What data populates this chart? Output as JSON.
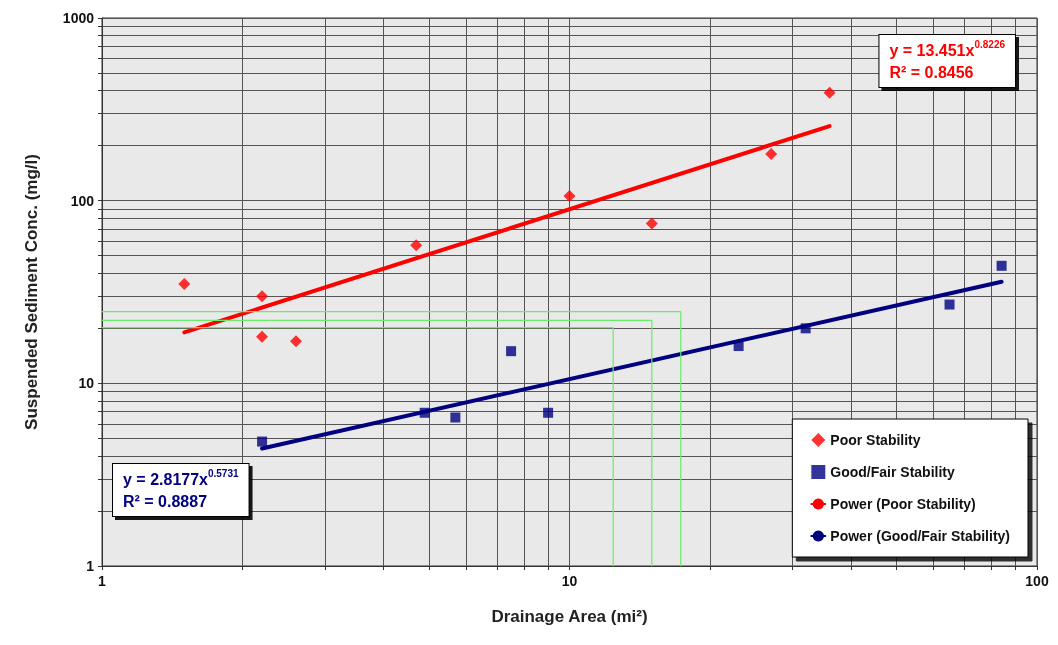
{
  "chart_data": {
    "type": "scatter",
    "xlabel": "Drainage Area (mi²)",
    "ylabel": "Suspended Sediment Conc. (mg/l)",
    "series": [
      {
        "name": "Poor Stability",
        "marker": "diamond",
        "color": "#ff0000",
        "x": [
          1.5,
          2.2,
          2.2,
          2.6,
          4.7,
          10,
          15,
          27,
          36
        ],
        "values": [
          35,
          30,
          18,
          17,
          57,
          106,
          75,
          180,
          390
        ]
      },
      {
        "name": "Good/Fair Stability",
        "marker": "square",
        "color": "#000080",
        "x": [
          2.2,
          4.9,
          5.7,
          7.5,
          9,
          23,
          32,
          65,
          84
        ],
        "values": [
          4.8,
          6.9,
          6.5,
          15,
          6.9,
          16,
          20,
          27,
          44
        ]
      },
      {
        "name": "Power (Poor Stability)",
        "type": "line",
        "marker": "none",
        "color": "#ff0000",
        "x": [
          1.5,
          36
        ],
        "values": [
          19,
          256
        ]
      },
      {
        "name": "Power (Good/Fair Stability)",
        "type": "line",
        "marker": "none",
        "color": "#000080",
        "x": [
          2.2,
          84
        ],
        "values": [
          4.4,
          36
        ]
      },
      {
        "type": "line",
        "marker": "none",
        "color": "#66ee66",
        "x": [
          1,
          17.3,
          17.3
        ],
        "values": [
          24.7,
          24.7,
          1
        ]
      },
      {
        "type": "line",
        "marker": "none",
        "color": "#66ee66",
        "x": [
          1,
          15,
          15
        ],
        "values": [
          22.1,
          22.1,
          1
        ]
      },
      {
        "type": "line",
        "marker": "none",
        "color": "#66ee66",
        "x": [
          1,
          12.4,
          12.4
        ],
        "values": [
          20.2,
          20.2,
          1
        ]
      }
    ],
    "annotations": [
      "y = 13.451x$^{0.8226}$\nR² = 0.8456",
      "y = 2.8177x$^{0.5731}$\nR² = 0.8887"
    ],
    "log": "xy",
    "xlim": [
      1,
      100
    ],
    "ylim": [
      1,
      1000
    ],
    "xticks": [
      1,
      {
        "value": 2,
        "label": null
      },
      {
        "value": 3,
        "label": null
      },
      {
        "value": 4,
        "label": null
      },
      {
        "value": 5,
        "label": null
      },
      {
        "value": 6,
        "label": null
      },
      {
        "value": 7,
        "label": null
      },
      {
        "value": 8,
        "label": null
      },
      {
        "value": 9,
        "label": null
      },
      10,
      {
        "value": 20,
        "label": null
      },
      {
        "value": 30,
        "label": null
      },
      {
        "value": 40,
        "label": null
      },
      {
        "value": 50,
        "label": null
      },
      {
        "value": 60,
        "label": null
      },
      {
        "value": 70,
        "label": null
      },
      {
        "value": 80,
        "label": null
      },
      {
        "value": 90,
        "label": null
      },
      100
    ],
    "yticks": [
      1,
      {
        "value": 2,
        "label": null
      },
      {
        "value": 3,
        "label": null
      },
      {
        "value": 4,
        "label": null
      },
      {
        "value": 5,
        "label": null
      },
      {
        "value": 6,
        "label": null
      },
      {
        "value": 7,
        "label": null
      },
      {
        "value": 8,
        "label": null
      },
      {
        "value": 9,
        "label": null
      },
      10,
      {
        "value": 20,
        "label": null
      },
      {
        "value": 30,
        "label": null
      },
      {
        "value": 40,
        "label": null
      },
      {
        "value": 50,
        "label": null
      },
      {
        "value": 60,
        "label": null
      },
      {
        "value": 70,
        "label": null
      },
      {
        "value": 80,
        "label": null
      },
      {
        "value": 90,
        "label": null
      },
      100,
      {
        "value": 200,
        "label": null
      },
      {
        "value": 300,
        "label": null
      },
      {
        "value": 400,
        "label": null
      },
      {
        "value": 500,
        "label": null
      },
      {
        "value": 600,
        "label": null
      },
      {
        "value": 700,
        "label": null
      },
      {
        "value": 800,
        "label": null
      },
      {
        "value": 900,
        "label": null
      },
      1000
    ],
    "grid": true,
    "legend": "bottom right"
  }
}
